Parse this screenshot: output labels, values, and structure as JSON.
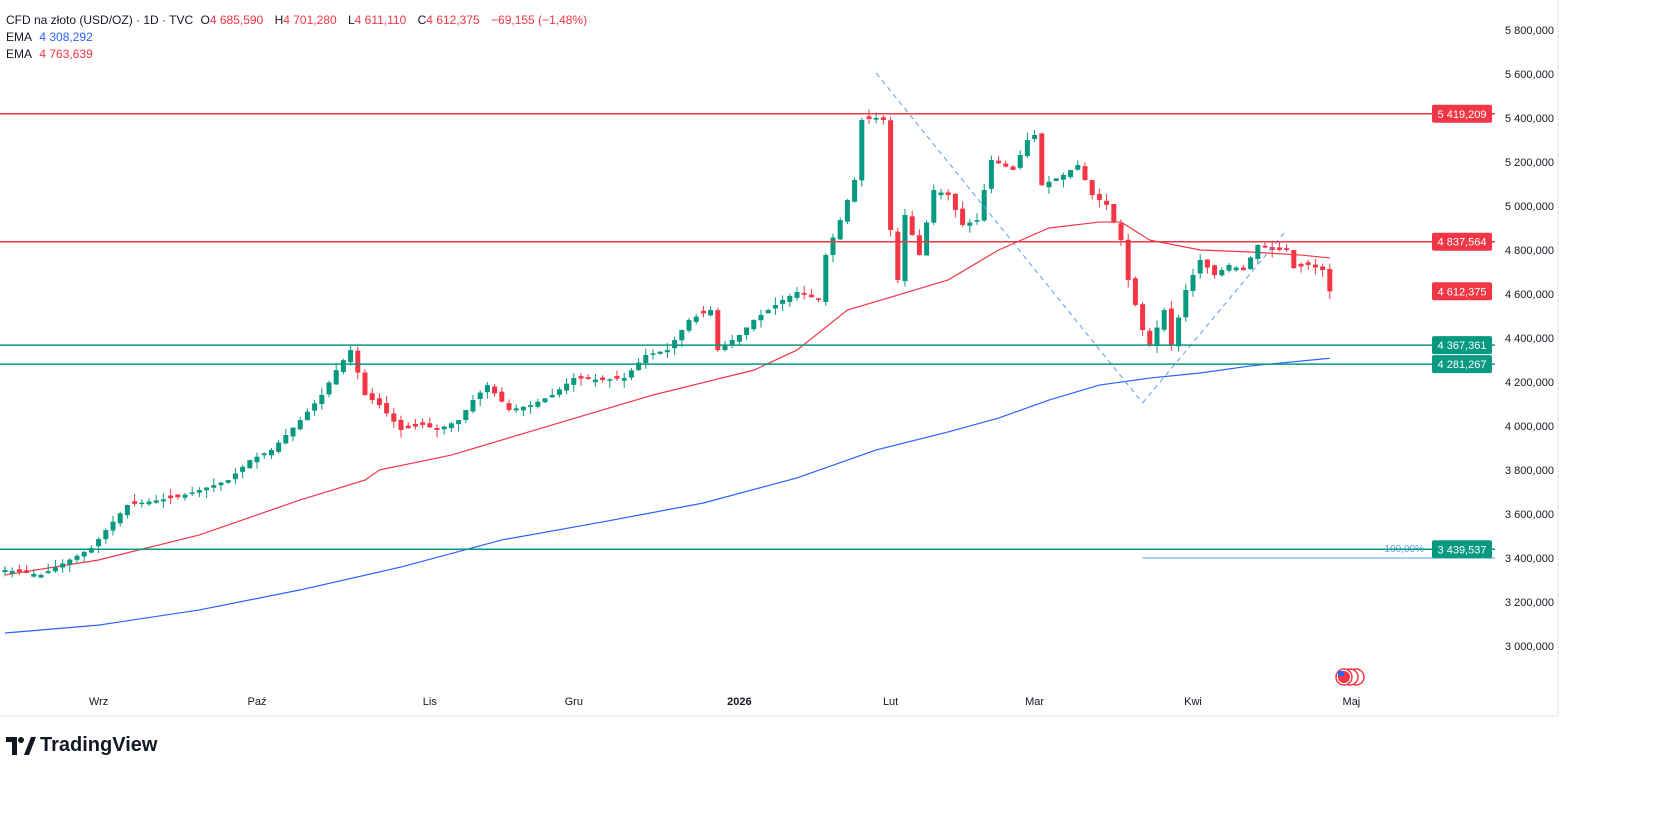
{
  "legend": {
    "symbol": "CFD na złoto (USD/OZ) · 1D · TVC",
    "open_label": "O",
    "open": "4 685,590",
    "high_label": "H",
    "high": "4 701,280",
    "low_label": "L",
    "low": "4 611,110",
    "close_label": "C",
    "close": "4 612,375",
    "change": "−69,155 (−1,48%)",
    "ema1_label": "EMA",
    "ema1_value": "4 308,292",
    "ema2_label": "EMA",
    "ema2_value": "4 763,639"
  },
  "branding": {
    "name": "TradingView"
  },
  "colors": {
    "up": "#089981",
    "down": "#f23645",
    "ema_fast": "#f23645",
    "ema_slow": "#2962ff",
    "support": "#089981",
    "resistance": "#f23645"
  },
  "chart_data": {
    "type": "candlestick",
    "title": "CFD na złoto (USD/OZ) · 1D · TVC",
    "ylim": [
      2800,
      5900
    ],
    "y_ticks": [
      3000,
      3200,
      3400,
      3600,
      3800,
      4000,
      4200,
      4400,
      4600,
      4800,
      5000,
      5200,
      5400,
      5600,
      5800
    ],
    "y_tick_labels": [
      "3 000,000",
      "3 200,000",
      "3 400,000",
      "3 600,000",
      "3 800,000",
      "4 000,000",
      "4 200,000",
      "4 400,000",
      "4 600,000",
      "4 800,000",
      "5 000,000",
      "5 200,000",
      "5 400,000",
      "5 600,000",
      "5 800,000"
    ],
    "x_bars": 186,
    "x_ticks": [
      {
        "label": "Wrz",
        "bar": 13
      },
      {
        "label": "Paź",
        "bar": 35
      },
      {
        "label": "Lis",
        "bar": 59
      },
      {
        "label": "Gru",
        "bar": 79
      },
      {
        "label": "2026",
        "bar": 102
      },
      {
        "label": "Lut",
        "bar": 123
      },
      {
        "label": "Mar",
        "bar": 143
      },
      {
        "label": "Kwi",
        "bar": 165
      },
      {
        "label": "Maj",
        "bar": 187
      }
    ],
    "close_keypoints": [
      [
        0,
        3346
      ],
      [
        5,
        3323
      ],
      [
        12,
        3445
      ],
      [
        14,
        3527
      ],
      [
        17,
        3641
      ],
      [
        24,
        3677
      ],
      [
        27,
        3709
      ],
      [
        31,
        3754
      ],
      [
        34,
        3845
      ],
      [
        37,
        3891
      ],
      [
        41,
        4027
      ],
      [
        44,
        4141
      ],
      [
        46,
        4254
      ],
      [
        48,
        4345
      ],
      [
        50,
        4141
      ],
      [
        52,
        4095
      ],
      [
        55,
        3982
      ],
      [
        58,
        4005
      ],
      [
        60,
        3982
      ],
      [
        63,
        4027
      ],
      [
        65,
        4118
      ],
      [
        67,
        4186
      ],
      [
        70,
        4073
      ],
      [
        73,
        4095
      ],
      [
        76,
        4141
      ],
      [
        79,
        4218
      ],
      [
        83,
        4209
      ],
      [
        86,
        4218
      ],
      [
        89,
        4323
      ],
      [
        92,
        4345
      ],
      [
        95,
        4482
      ],
      [
        98,
        4527
      ],
      [
        99,
        4345
      ],
      [
        102,
        4414
      ],
      [
        104,
        4482
      ],
      [
        108,
        4573
      ],
      [
        110,
        4609
      ],
      [
        113,
        4573
      ],
      [
        114,
        4777
      ],
      [
        116,
        4936
      ],
      [
        118,
        5118
      ],
      [
        119,
        5391
      ],
      [
        121,
        5400
      ],
      [
        122,
        5391
      ],
      [
        123,
        4891
      ],
      [
        124,
        4664
      ],
      [
        125,
        4959
      ],
      [
        127,
        4777
      ],
      [
        129,
        5073
      ],
      [
        131,
        5050
      ],
      [
        133,
        4914
      ],
      [
        135,
        4936
      ],
      [
        137,
        5209
      ],
      [
        140,
        5164
      ],
      [
        142,
        5300
      ],
      [
        143,
        5323
      ],
      [
        144,
        5095
      ],
      [
        147,
        5141
      ],
      [
        149,
        5186
      ],
      [
        151,
        5050
      ],
      [
        153,
        5005
      ],
      [
        155,
        4845
      ],
      [
        156,
        4664
      ],
      [
        158,
        4436
      ],
      [
        159,
        4368
      ],
      [
        161,
        4527
      ],
      [
        162,
        4368
      ],
      [
        164,
        4618
      ],
      [
        166,
        4755
      ],
      [
        168,
        4686
      ],
      [
        170,
        4732
      ],
      [
        172,
        4709
      ],
      [
        174,
        4823
      ],
      [
        176,
        4800
      ],
      [
        178,
        4800
      ],
      [
        179,
        4718
      ],
      [
        181,
        4732
      ],
      [
        183,
        4709
      ],
      [
        184,
        4612
      ]
    ],
    "ema_fast": {
      "name": "EMA",
      "points": [
        [
          0,
          3323
        ],
        [
          13,
          3391
        ],
        [
          27,
          3505
        ],
        [
          41,
          3664
        ],
        [
          50,
          3754
        ],
        [
          52,
          3800
        ],
        [
          62,
          3868
        ],
        [
          76,
          4005
        ],
        [
          90,
          4141
        ],
        [
          104,
          4254
        ],
        [
          110,
          4345
        ],
        [
          117,
          4527
        ],
        [
          124,
          4595
        ],
        [
          131,
          4664
        ],
        [
          138,
          4800
        ],
        [
          145,
          4900
        ],
        [
          152,
          4927
        ],
        [
          155,
          4927
        ],
        [
          159,
          4845
        ],
        [
          166,
          4800
        ],
        [
          173,
          4791
        ],
        [
          180,
          4777
        ],
        [
          184,
          4764
        ]
      ]
    },
    "ema_slow": {
      "name": "EMA",
      "points": [
        [
          0,
          3059
        ],
        [
          13,
          3095
        ],
        [
          27,
          3164
        ],
        [
          41,
          3255
        ],
        [
          55,
          3359
        ],
        [
          69,
          3482
        ],
        [
          83,
          3564
        ],
        [
          97,
          3650
        ],
        [
          110,
          3764
        ],
        [
          121,
          3891
        ],
        [
          131,
          3973
        ],
        [
          138,
          4036
        ],
        [
          145,
          4118
        ],
        [
          152,
          4186
        ],
        [
          159,
          4218
        ],
        [
          166,
          4241
        ],
        [
          173,
          4273
        ],
        [
          184,
          4308
        ]
      ]
    },
    "horizontal_levels": [
      {
        "price": 5419.209,
        "label": "5 419,209",
        "kind": "resistance"
      },
      {
        "price": 4837.564,
        "label": "4 837,564",
        "kind": "resistance"
      },
      {
        "price": 4367.361,
        "label": "4 367,361",
        "kind": "support"
      },
      {
        "price": 4281.267,
        "label": "4 281,267",
        "kind": "support"
      },
      {
        "price": 3439.537,
        "label": "3 439,537",
        "kind": "support"
      }
    ],
    "last_price": {
      "price": 4612.375,
      "label": "4 612,375"
    },
    "trend_lines": [
      [
        [
          121,
          5604
        ],
        [
          158,
          4105
        ]
      ],
      [
        [
          158,
          4105
        ],
        [
          178,
          4891
        ]
      ]
    ],
    "fib": {
      "label": "100,00%",
      "price": 3400,
      "from_bar": 158
    }
  }
}
